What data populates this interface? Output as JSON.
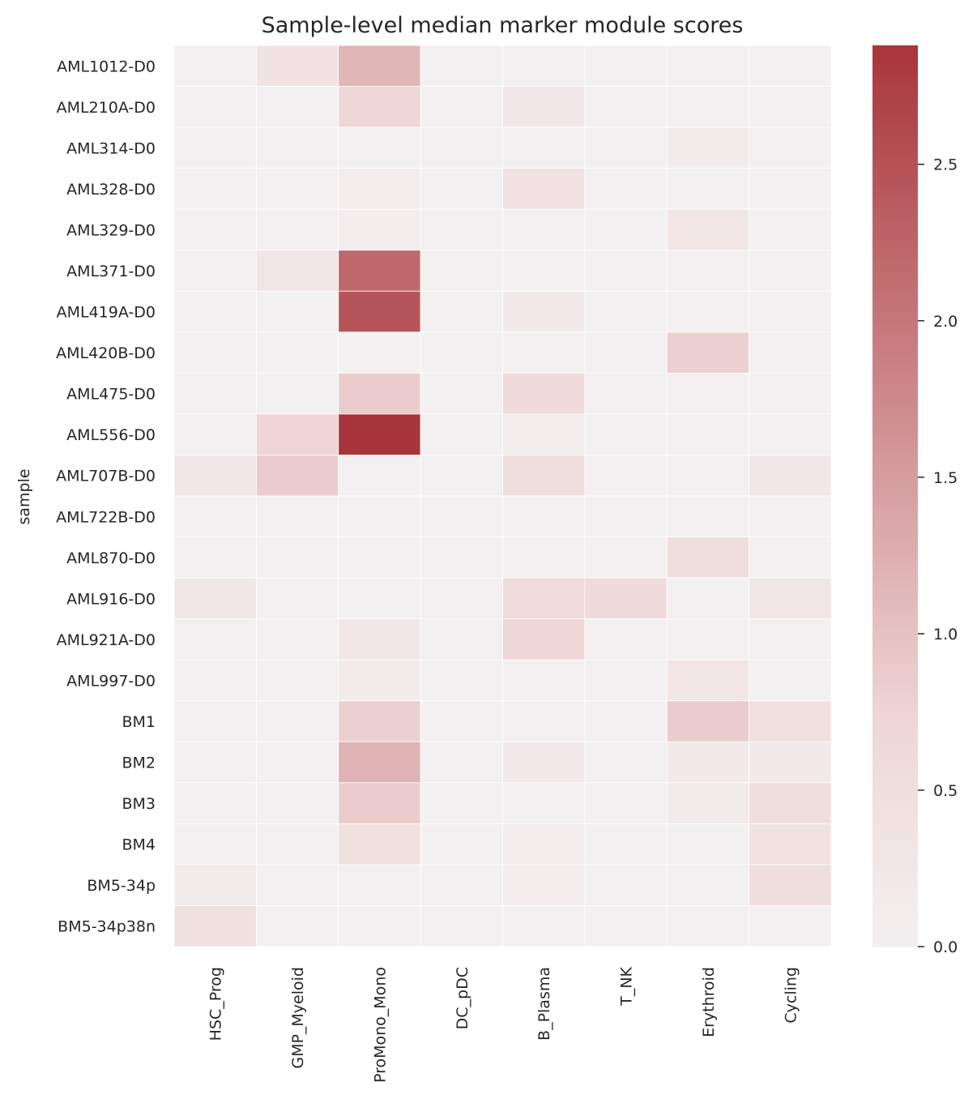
{
  "chart_data": {
    "type": "heatmap",
    "title": "Sample-level median marker module scores",
    "ylabel": "sample",
    "xlabel": "",
    "rows": [
      "AML1012-D0",
      "AML210A-D0",
      "AML314-D0",
      "AML328-D0",
      "AML329-D0",
      "AML371-D0",
      "AML419A-D0",
      "AML420B-D0",
      "AML475-D0",
      "AML556-D0",
      "AML707B-D0",
      "AML722B-D0",
      "AML870-D0",
      "AML916-D0",
      "AML921A-D0",
      "AML997-D0",
      "BM1",
      "BM2",
      "BM3",
      "BM4",
      "BM5-34p",
      "BM5-34p38n"
    ],
    "columns": [
      "HSC_Prog",
      "GMP_Myeloid",
      "ProMono_Mono",
      "DC_pDC",
      "B_Plasma",
      "T_NK",
      "Erythroid",
      "Cycling"
    ],
    "values": [
      [
        0.0,
        0.35,
        1.15,
        0.0,
        0.0,
        0.0,
        0.0,
        0.0
      ],
      [
        0.0,
        0.0,
        0.7,
        0.0,
        0.25,
        0.0,
        0.0,
        0.0
      ],
      [
        0.0,
        0.0,
        0.0,
        0.0,
        0.0,
        0.0,
        0.15,
        0.0
      ],
      [
        0.0,
        0.0,
        0.1,
        0.0,
        0.35,
        0.0,
        0.0,
        0.0
      ],
      [
        0.0,
        0.0,
        0.08,
        0.0,
        0.0,
        0.0,
        0.3,
        0.0
      ],
      [
        0.0,
        0.3,
        2.2,
        0.0,
        0.0,
        0.0,
        0.0,
        0.0
      ],
      [
        0.0,
        0.0,
        2.45,
        0.0,
        0.2,
        0.0,
        0.0,
        0.0
      ],
      [
        0.0,
        0.0,
        0.0,
        0.0,
        0.0,
        0.0,
        0.8,
        0.0
      ],
      [
        0.0,
        0.0,
        0.85,
        0.0,
        0.6,
        0.0,
        0.0,
        0.0
      ],
      [
        0.0,
        0.75,
        2.88,
        0.0,
        0.1,
        0.0,
        0.0,
        0.0
      ],
      [
        0.25,
        0.85,
        0.0,
        0.0,
        0.5,
        0.0,
        0.0,
        0.25
      ],
      [
        0.0,
        0.0,
        0.0,
        0.0,
        0.0,
        0.0,
        0.0,
        0.0
      ],
      [
        0.0,
        0.0,
        0.0,
        0.0,
        0.0,
        0.0,
        0.5,
        0.0
      ],
      [
        0.25,
        0.0,
        0.0,
        0.0,
        0.55,
        0.6,
        0.0,
        0.3
      ],
      [
        0.0,
        0.0,
        0.25,
        0.0,
        0.7,
        0.0,
        0.0,
        0.0
      ],
      [
        0.0,
        0.0,
        0.15,
        0.0,
        0.0,
        0.0,
        0.3,
        0.0
      ],
      [
        0.0,
        0.0,
        0.8,
        0.0,
        0.0,
        0.0,
        0.85,
        0.45
      ],
      [
        0.0,
        0.0,
        1.2,
        0.0,
        0.2,
        0.0,
        0.2,
        0.2
      ],
      [
        0.0,
        0.0,
        0.85,
        0.0,
        0.0,
        0.0,
        0.15,
        0.5
      ],
      [
        0.0,
        0.0,
        0.45,
        0.0,
        0.1,
        0.0,
        0.0,
        0.4
      ],
      [
        0.15,
        0.0,
        0.0,
        0.0,
        0.1,
        0.0,
        0.0,
        0.5
      ],
      [
        0.45,
        0.0,
        0.0,
        0.0,
        0.0,
        0.0,
        0.0,
        0.0
      ]
    ],
    "vmin": 0.0,
    "vmax": 2.88,
    "colorbar": {
      "ticks": [
        0.0,
        0.5,
        1.0,
        1.5,
        2.0,
        2.5
      ],
      "tick_labels": [
        "0.0",
        "0.5",
        "1.0",
        "1.5",
        "2.0",
        "2.5"
      ]
    },
    "colors": {
      "low": "#f3f0f1",
      "mid": "#efd6d6",
      "high": "#a8353a",
      "grid": "#ffffff"
    },
    "grid": false,
    "legend": "colorbar-right"
  }
}
